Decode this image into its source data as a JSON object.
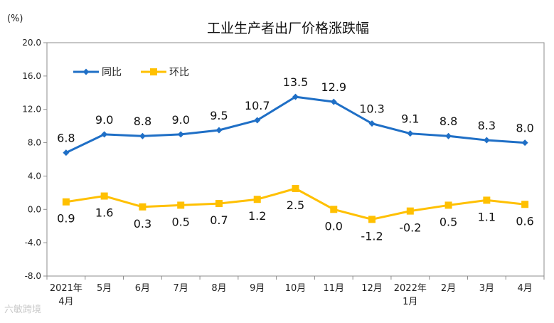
{
  "chart_data": {
    "type": "line",
    "title": "工业生产者出厂价格涨跌幅",
    "unit_label": "(%)",
    "ylim": [
      -8.0,
      20.0
    ],
    "y_ticks": [
      "20.0",
      "16.0",
      "12.0",
      "8.0",
      "4.0",
      "0.0",
      "-4.0",
      "-8.0"
    ],
    "categories": [
      [
        "2021年",
        "4月"
      ],
      [
        "5月"
      ],
      [
        "6月"
      ],
      [
        "7月"
      ],
      [
        "8月"
      ],
      [
        "9月"
      ],
      [
        "10月"
      ],
      [
        "11月"
      ],
      [
        "12月"
      ],
      [
        "2022年",
        "1月"
      ],
      [
        "2月"
      ],
      [
        "3月"
      ],
      [
        "4月"
      ]
    ],
    "series": [
      {
        "name": "同比",
        "color": "#1f6fc6",
        "marker": "diamond",
        "values": [
          6.8,
          9.0,
          8.8,
          9.0,
          9.5,
          10.7,
          13.5,
          12.9,
          10.3,
          9.1,
          8.8,
          8.3,
          8.0
        ],
        "labels": [
          "6.8",
          "9.0",
          "8.8",
          "9.0",
          "9.5",
          "10.7",
          "13.5",
          "12.9",
          "10.3",
          "9.1",
          "8.8",
          "8.3",
          "8.0"
        ]
      },
      {
        "name": "环比",
        "color": "#ffc000",
        "marker": "square",
        "values": [
          0.9,
          1.6,
          0.3,
          0.5,
          0.7,
          1.2,
          2.5,
          0.0,
          -1.2,
          -0.2,
          0.5,
          1.1,
          0.6
        ],
        "labels": [
          "0.9",
          "1.6",
          "0.3",
          "0.5",
          "0.7",
          "1.2",
          "2.5",
          "0.0",
          "-1.2",
          "-0.2",
          "0.5",
          "1.1",
          "0.6"
        ]
      }
    ],
    "legend_position": "top-left",
    "grid": false
  },
  "watermark": "六敏跨境"
}
